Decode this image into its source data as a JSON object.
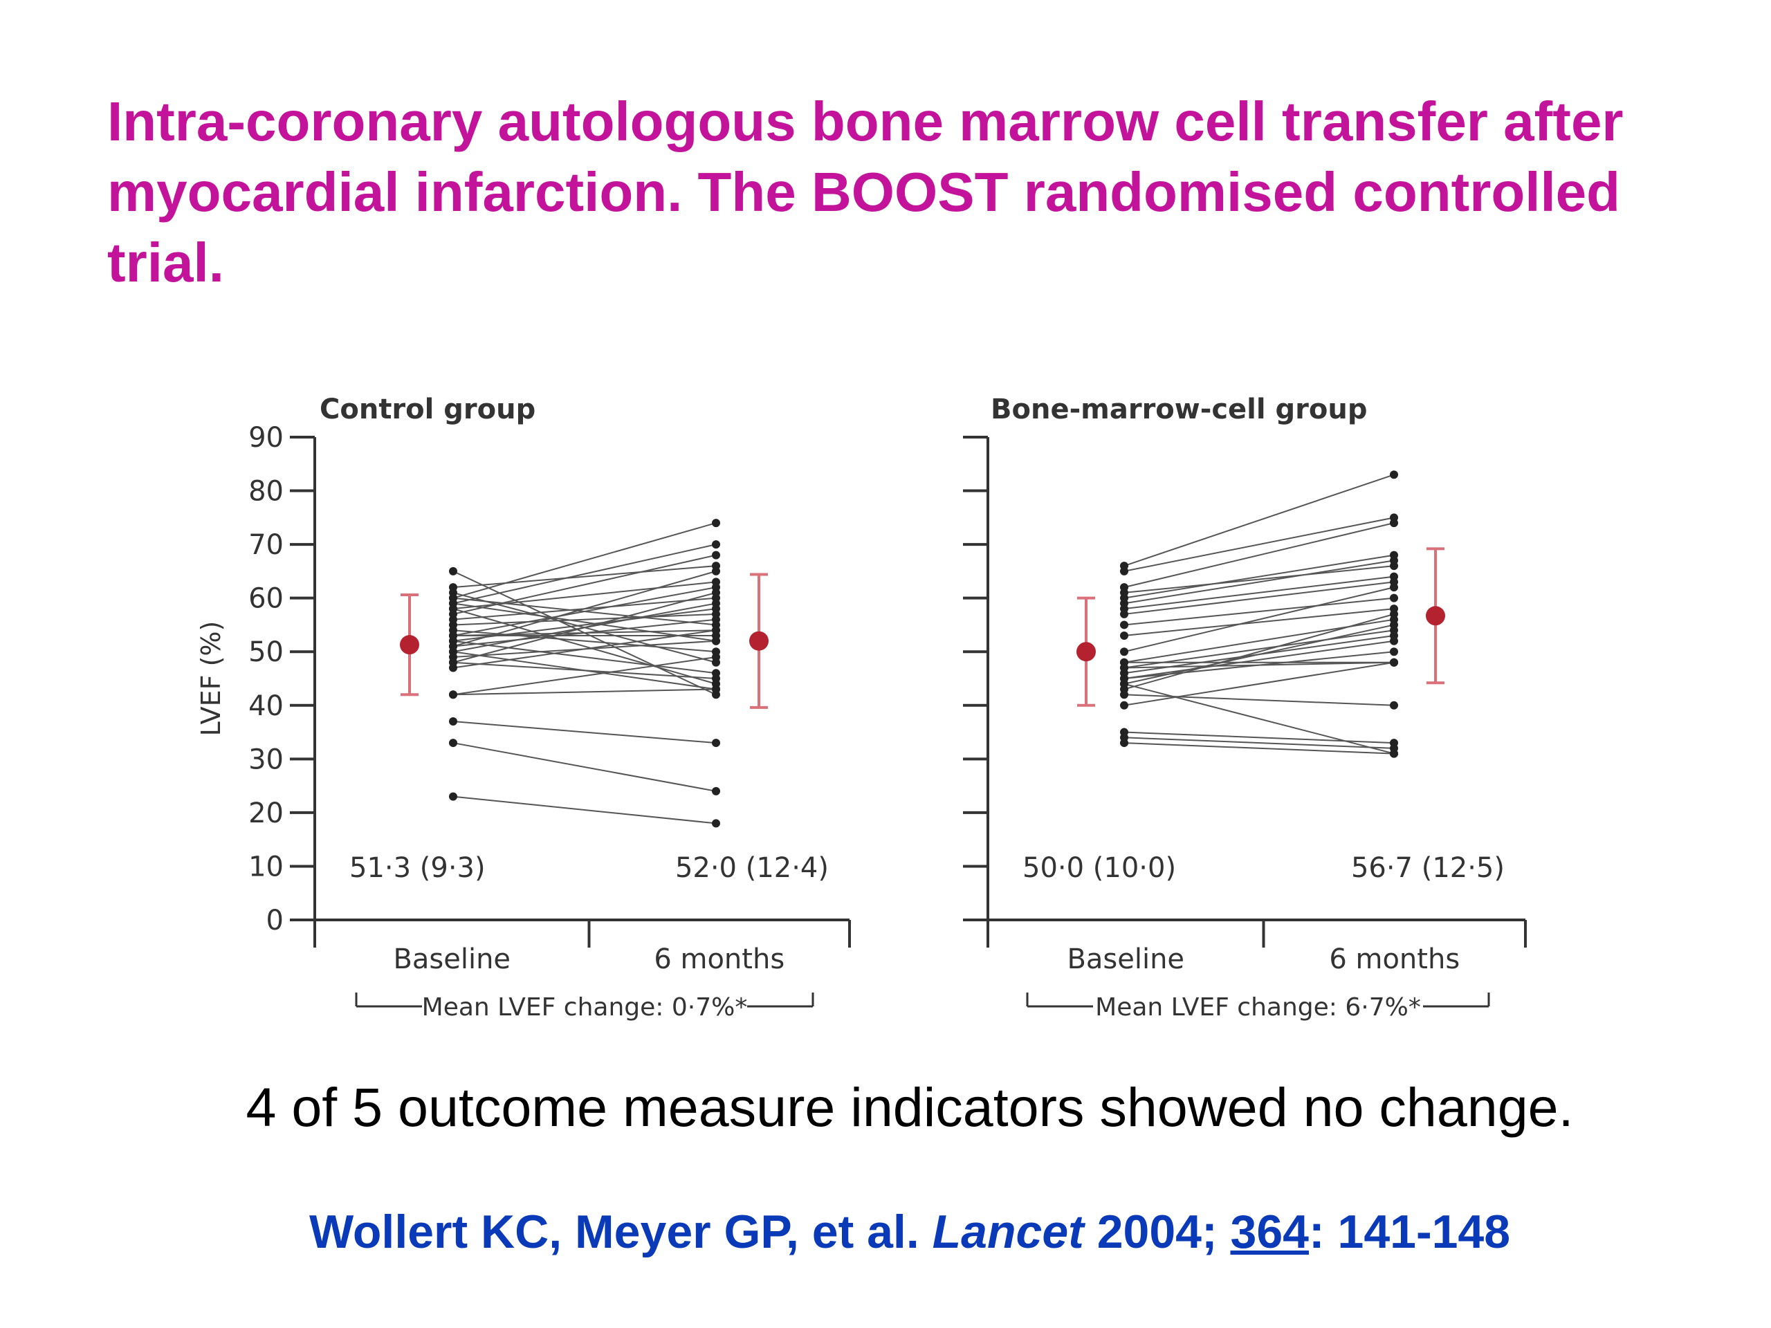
{
  "slide": {
    "title": "Intra-coronary autologous bone marrow cell transfer after myocardial infarction. The BOOST randomised controlled trial.",
    "subtitle": "4 of 5 outcome measure indicators showed no change.",
    "citation": {
      "authors": "Wollert KC, Meyer GP, et al. ",
      "journal": "Lancet",
      "year": " 2004; ",
      "volume": "364",
      "pages": ": 141-148"
    }
  },
  "colors": {
    "title": "#c4139b",
    "citation": "#0a3ab8",
    "mean_marker": "#b5222f",
    "error_bar": "#d9707a",
    "lines": "#555555"
  },
  "chart_data": [
    {
      "type": "line",
      "title": "Control group",
      "ylabel": "LVEF (%)",
      "ylim": [
        0,
        90
      ],
      "yticks": [
        0,
        10,
        20,
        30,
        40,
        50,
        60,
        70,
        80,
        90
      ],
      "categories": [
        "Baseline",
        "6 months"
      ],
      "bracket_label": "Mean LVEF change: 0·7%*",
      "summary": [
        {
          "category": "Baseline",
          "mean": 51.3,
          "sd": 9.3,
          "label": "51·3 (9·3)"
        },
        {
          "category": "6 months",
          "mean": 52.0,
          "sd": 12.4,
          "label": "52·0 (12·4)"
        }
      ],
      "pairs": [
        [
          65,
          42
        ],
        [
          62,
          66
        ],
        [
          61,
          48
        ],
        [
          60,
          74
        ],
        [
          60,
          55
        ],
        [
          59,
          70
        ],
        [
          59,
          52
        ],
        [
          58,
          63
        ],
        [
          58,
          44
        ],
        [
          57,
          68
        ],
        [
          56,
          60
        ],
        [
          55,
          57
        ],
        [
          54,
          50
        ],
        [
          53,
          62
        ],
        [
          53,
          54
        ],
        [
          53,
          53
        ],
        [
          52,
          58
        ],
        [
          52,
          46
        ],
        [
          51,
          65
        ],
        [
          51,
          56
        ],
        [
          50,
          43
        ],
        [
          50,
          59
        ],
        [
          49,
          52
        ],
        [
          48,
          61
        ],
        [
          48,
          45
        ],
        [
          47,
          54
        ],
        [
          42,
          49
        ],
        [
          42,
          43
        ],
        [
          37,
          33
        ],
        [
          33,
          24
        ],
        [
          23,
          18
        ]
      ]
    },
    {
      "type": "line",
      "title": "Bone-marrow-cell group",
      "ylabel": "",
      "ylim": [
        0,
        90
      ],
      "yticks": [
        0,
        10,
        20,
        30,
        40,
        50,
        60,
        70,
        80,
        90
      ],
      "categories": [
        "Baseline",
        "6 months"
      ],
      "bracket_label": "Mean LVEF change: 6·7%*",
      "summary": [
        {
          "category": "Baseline",
          "mean": 50.0,
          "sd": 10.0,
          "label": "50·0 (10·0)"
        },
        {
          "category": "6 months",
          "mean": 56.7,
          "sd": 12.5,
          "label": "56·7 (12·5)"
        }
      ],
      "pairs": [
        [
          66,
          83
        ],
        [
          65,
          75
        ],
        [
          62,
          74
        ],
        [
          61,
          66
        ],
        [
          60,
          68
        ],
        [
          59,
          67
        ],
        [
          58,
          64
        ],
        [
          57,
          63
        ],
        [
          55,
          60
        ],
        [
          53,
          58
        ],
        [
          50,
          62
        ],
        [
          48,
          56
        ],
        [
          48,
          48
        ],
        [
          47,
          54
        ],
        [
          47,
          48
        ],
        [
          46,
          53
        ],
        [
          45,
          52
        ],
        [
          45,
          50
        ],
        [
          44,
          55
        ],
        [
          44,
          31
        ],
        [
          43,
          57
        ],
        [
          42,
          40
        ],
        [
          40,
          48
        ],
        [
          35,
          33
        ],
        [
          34,
          32
        ],
        [
          33,
          31
        ]
      ]
    }
  ]
}
